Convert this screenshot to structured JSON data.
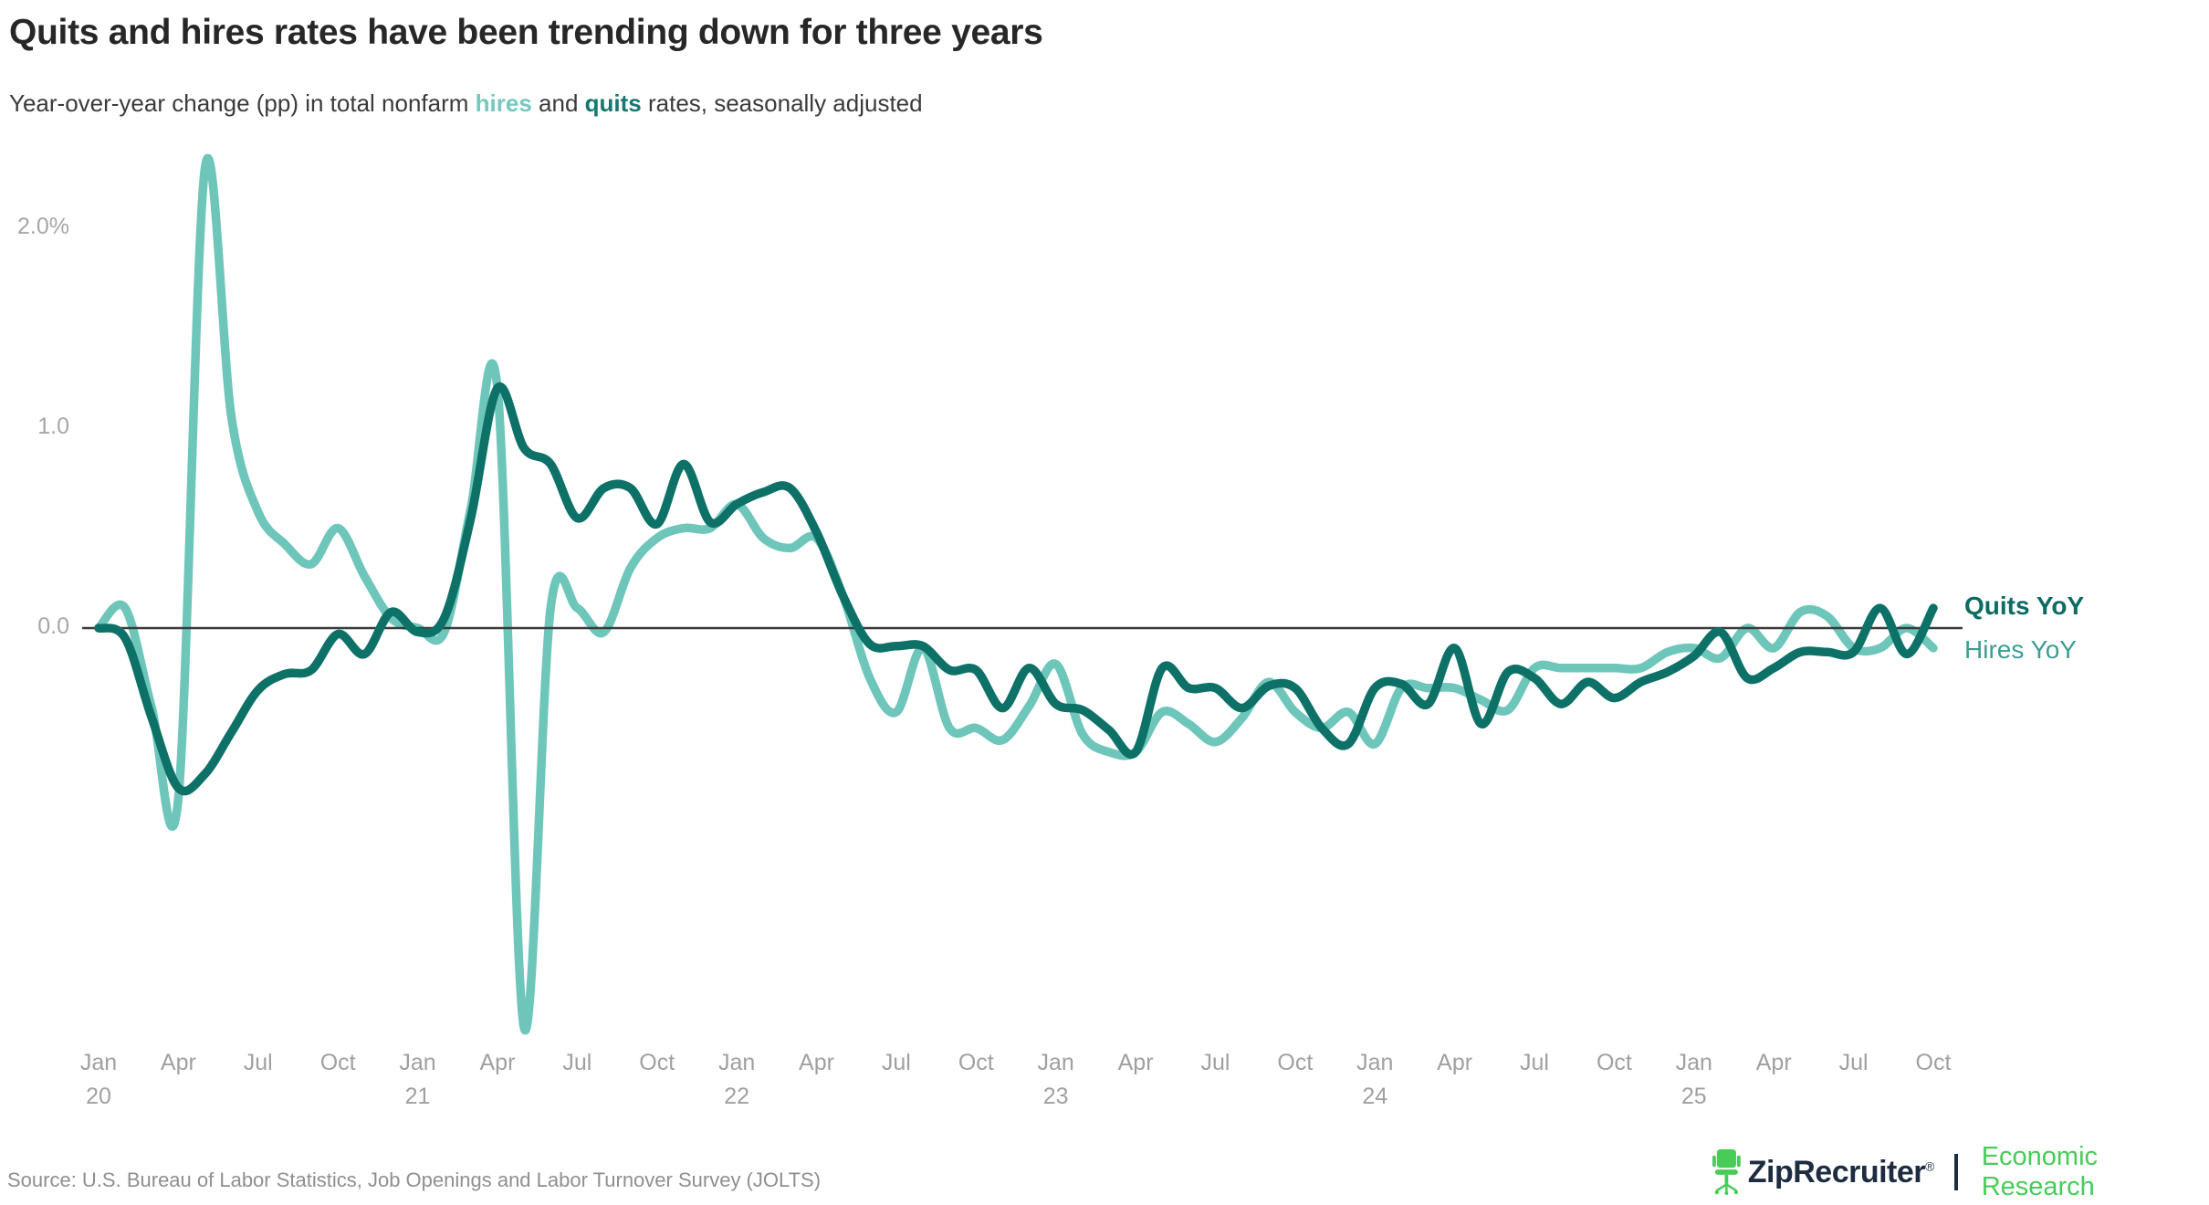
{
  "header": {
    "title": "Quits and hires rates have been trending down for three years",
    "subtitle": {
      "prefix": "Year-over-year change (pp) in total nonfarm ",
      "hires_word": "hires",
      "and_word": " and ",
      "quits_word": "quits",
      "suffix": " rates, seasonally adjusted"
    }
  },
  "colors": {
    "hires_line": "#6ec6ba",
    "quits_line": "#0d7168",
    "hires_word": "#76c8bd",
    "quits_word": "#15796f",
    "hires_legend_text": "#3e9d92",
    "quits_legend_text": "#0c6b62",
    "zero_axis": "#3a3a3a",
    "brand_navy": "#1e2c40",
    "brand_green": "#47cc57",
    "tick_gray": "#a0a0a0"
  },
  "legend": {
    "quits_label": "Quits YoY",
    "hires_label": "Hires YoY"
  },
  "footer": {
    "source": "Source: U.S. Bureau of Labor Statistics, Job Openings and Labor Turnover Survey (JOLTS)",
    "brand": "ZipRecruiter",
    "brand_mark": "®",
    "division": "Economic Research"
  },
  "chart_data": {
    "type": "line",
    "title": "Quits and hires rates have been trending down for three years",
    "subtitle": "Year-over-year change (pp) in total nonfarm hires and quits rates, seasonally adjusted",
    "xlabel": "",
    "ylabel": "Year-over-year change (pp)",
    "ylim": [
      -2.6,
      2.45
    ],
    "grid": false,
    "baseline": 0,
    "legend_position": "right-of-line-end",
    "x_tick_months": [
      "Jan",
      "Apr",
      "Jul",
      "Oct"
    ],
    "x_tick_years_under": [
      "20",
      "21",
      "22",
      "23",
      "24",
      "25"
    ],
    "y_ticks": [
      {
        "label": "2.0%",
        "value": 2.0
      },
      {
        "label": "1.0",
        "value": 1.0
      },
      {
        "label": "0.0",
        "value": 0.0
      }
    ],
    "x": [
      "2020-01",
      "2020-02",
      "2020-03",
      "2020-04",
      "2020-05",
      "2020-06",
      "2020-07",
      "2020-08",
      "2020-09",
      "2020-10",
      "2020-11",
      "2020-12",
      "2021-01",
      "2021-02",
      "2021-03",
      "2021-04",
      "2021-05",
      "2021-06",
      "2021-07",
      "2021-08",
      "2021-09",
      "2021-10",
      "2021-11",
      "2021-12",
      "2022-01",
      "2022-02",
      "2022-03",
      "2022-04",
      "2022-05",
      "2022-06",
      "2022-07",
      "2022-08",
      "2022-09",
      "2022-10",
      "2022-11",
      "2022-12",
      "2023-01",
      "2023-02",
      "2023-03",
      "2023-04",
      "2023-05",
      "2023-06",
      "2023-07",
      "2023-08",
      "2023-09",
      "2023-10",
      "2023-11",
      "2023-12",
      "2024-01",
      "2024-02",
      "2024-03",
      "2024-04",
      "2024-05",
      "2024-06",
      "2024-07",
      "2024-08",
      "2024-09",
      "2024-10",
      "2024-11",
      "2024-12",
      "2025-01",
      "2025-02",
      "2025-03",
      "2025-04",
      "2025-05",
      "2025-06",
      "2025-07",
      "2025-08",
      "2025-09",
      "2025-10"
    ],
    "series": [
      {
        "name": "Hires YoY",
        "color": "#6ec6ba",
        "values": [
          0.0,
          0.1,
          -0.4,
          -0.85,
          2.3,
          1.05,
          0.58,
          0.42,
          0.32,
          0.5,
          0.26,
          0.05,
          0.0,
          -0.02,
          0.6,
          1.2,
          -2.0,
          0.1,
          0.1,
          -0.02,
          0.3,
          0.45,
          0.5,
          0.5,
          0.62,
          0.45,
          0.4,
          0.45,
          0.16,
          -0.25,
          -0.42,
          -0.1,
          -0.5,
          -0.5,
          -0.56,
          -0.39,
          -0.18,
          -0.53,
          -0.62,
          -0.62,
          -0.42,
          -0.48,
          -0.57,
          -0.45,
          -0.27,
          -0.42,
          -0.5,
          -0.42,
          -0.58,
          -0.3,
          -0.3,
          -0.3,
          -0.36,
          -0.41,
          -0.2,
          -0.2,
          -0.2,
          -0.2,
          -0.2,
          -0.12,
          -0.1,
          -0.15,
          0.0,
          -0.1,
          0.08,
          0.06,
          -0.1,
          -0.1,
          0.0,
          -0.1
        ]
      },
      {
        "name": "Quits YoY",
        "color": "#0d7168",
        "values": [
          0.0,
          -0.05,
          -0.45,
          -0.8,
          -0.73,
          -0.52,
          -0.31,
          -0.23,
          -0.21,
          -0.03,
          -0.13,
          0.08,
          -0.02,
          0.05,
          0.55,
          1.2,
          0.9,
          0.82,
          0.55,
          0.7,
          0.7,
          0.52,
          0.82,
          0.53,
          0.62,
          0.68,
          0.7,
          0.48,
          0.16,
          -0.08,
          -0.09,
          -0.09,
          -0.21,
          -0.21,
          -0.4,
          -0.2,
          -0.38,
          -0.41,
          -0.51,
          -0.62,
          -0.2,
          -0.3,
          -0.3,
          -0.4,
          -0.29,
          -0.3,
          -0.5,
          -0.58,
          -0.3,
          -0.28,
          -0.38,
          -0.1,
          -0.48,
          -0.22,
          -0.25,
          -0.38,
          -0.27,
          -0.35,
          -0.27,
          -0.22,
          -0.14,
          -0.02,
          -0.25,
          -0.2,
          -0.12,
          -0.12,
          -0.12,
          0.1,
          -0.13,
          0.1
        ]
      }
    ]
  }
}
